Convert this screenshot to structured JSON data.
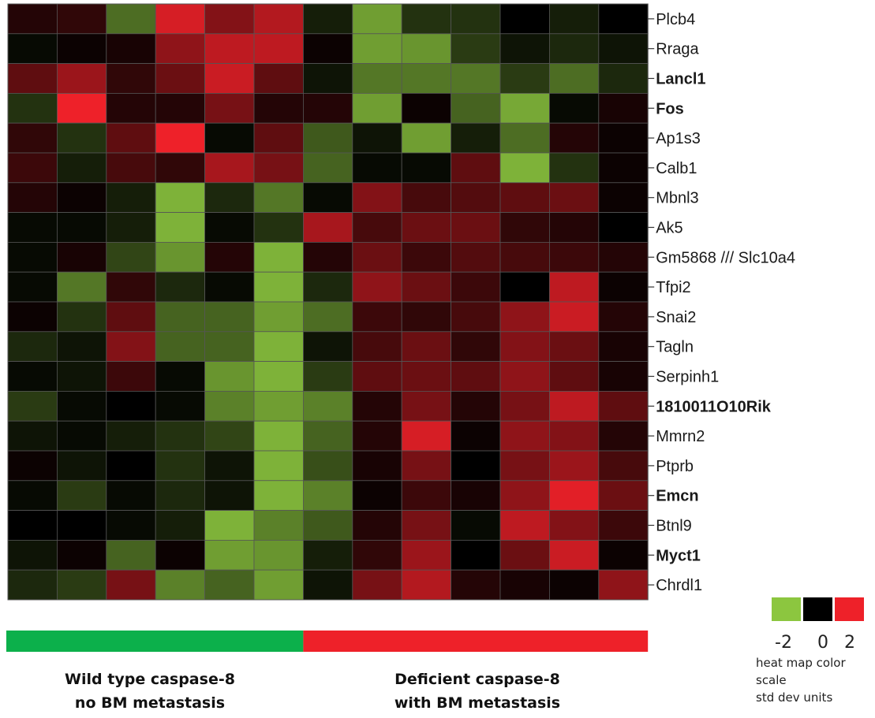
{
  "chart_data": {
    "type": "heatmap",
    "title": "",
    "columns_per_group": [
      6,
      7
    ],
    "rows": [
      {
        "gene": "Plcb4",
        "bold": false,
        "values": [
          0.3,
          0.4,
          -1.1,
          1.8,
          1.1,
          1.5,
          -0.3,
          -1.6,
          -0.5,
          -0.5,
          0.0,
          -0.3,
          0.0
        ]
      },
      {
        "gene": "Rraga",
        "bold": false,
        "values": [
          -0.1,
          0.1,
          0.2,
          1.2,
          1.6,
          1.6,
          0.1,
          -1.6,
          -1.5,
          -0.6,
          -0.2,
          -0.4,
          -0.2
        ]
      },
      {
        "gene": "Lancl1",
        "bold": true,
        "values": [
          0.8,
          1.3,
          0.4,
          0.9,
          1.7,
          0.8,
          -0.2,
          -1.2,
          -1.2,
          -1.2,
          -0.6,
          -1.1,
          -0.4
        ]
      },
      {
        "gene": "Fos",
        "bold": true,
        "values": [
          -0.5,
          2.0,
          0.3,
          0.3,
          1.0,
          0.3,
          0.3,
          -1.6,
          0.1,
          -1.0,
          -1.7,
          -0.1,
          0.2
        ]
      },
      {
        "gene": "Ap1s3",
        "bold": false,
        "values": [
          0.4,
          -0.5,
          0.8,
          2.0,
          -0.1,
          0.8,
          -0.9,
          -0.2,
          -1.6,
          -0.3,
          -1.1,
          0.3,
          0.1
        ]
      },
      {
        "gene": "Calb1",
        "bold": false,
        "values": [
          0.5,
          -0.3,
          0.6,
          0.4,
          1.4,
          1.0,
          -1.0,
          -0.1,
          -0.1,
          0.8,
          -1.8,
          -0.5,
          0.1
        ]
      },
      {
        "gene": "Mbnl3",
        "bold": false,
        "values": [
          0.3,
          0.1,
          -0.3,
          -1.8,
          -0.4,
          -1.2,
          -0.1,
          1.1,
          0.6,
          0.7,
          0.8,
          0.9,
          0.1
        ]
      },
      {
        "gene": "Ak5",
        "bold": false,
        "values": [
          -0.1,
          -0.1,
          -0.3,
          -1.8,
          -0.1,
          -0.5,
          1.4,
          0.6,
          0.9,
          0.9,
          0.4,
          0.3,
          0.0
        ]
      },
      {
        "gene": "Gm5868 /// Slc10a4",
        "bold": false,
        "values": [
          -0.1,
          0.2,
          -0.7,
          -1.5,
          0.3,
          -1.8,
          0.3,
          0.9,
          0.5,
          0.7,
          0.6,
          0.5,
          0.3
        ]
      },
      {
        "gene": "Tfpi2",
        "bold": false,
        "values": [
          -0.1,
          -1.2,
          0.4,
          -0.4,
          -0.1,
          -1.8,
          -0.4,
          1.2,
          0.9,
          0.5,
          0.0,
          1.6,
          0.1
        ]
      },
      {
        "gene": "Snai2",
        "bold": false,
        "values": [
          0.1,
          -0.5,
          0.8,
          -1.0,
          -1.0,
          -1.6,
          -1.1,
          0.5,
          0.4,
          0.6,
          1.2,
          1.7,
          0.3
        ]
      },
      {
        "gene": "Tagln",
        "bold": false,
        "values": [
          -0.4,
          -0.2,
          1.1,
          -1.0,
          -1.0,
          -1.8,
          -0.2,
          0.6,
          0.9,
          0.4,
          1.1,
          0.9,
          0.2
        ]
      },
      {
        "gene": "Serpinh1",
        "bold": false,
        "values": [
          -0.1,
          -0.2,
          0.5,
          -0.1,
          -1.5,
          -1.8,
          -0.6,
          0.8,
          0.9,
          0.8,
          1.2,
          0.8,
          0.2
        ]
      },
      {
        "gene": "1810011O10Rik",
        "bold": true,
        "values": [
          -0.6,
          -0.1,
          0.0,
          -0.1,
          -1.3,
          -1.6,
          -1.3,
          0.3,
          1.0,
          0.3,
          1.0,
          1.6,
          0.8
        ]
      },
      {
        "gene": "Mmrn2",
        "bold": false,
        "values": [
          -0.2,
          -0.1,
          -0.3,
          -0.5,
          -0.7,
          -1.8,
          -1.0,
          0.3,
          1.8,
          0.1,
          1.2,
          1.1,
          0.3
        ]
      },
      {
        "gene": "Ptprb",
        "bold": false,
        "values": [
          0.1,
          -0.2,
          0.0,
          -0.5,
          -0.2,
          -1.8,
          -0.8,
          0.2,
          1.0,
          0.0,
          1.0,
          1.3,
          0.6
        ]
      },
      {
        "gene": "Emcn",
        "bold": true,
        "values": [
          -0.1,
          -0.6,
          -0.1,
          -0.4,
          -0.2,
          -1.8,
          -1.3,
          0.1,
          0.5,
          0.2,
          1.2,
          1.9,
          0.9
        ]
      },
      {
        "gene": "Btnl9",
        "bold": false,
        "values": [
          0.0,
          0.0,
          -0.1,
          -0.3,
          -1.8,
          -1.3,
          -0.9,
          0.3,
          1.0,
          -0.1,
          1.6,
          1.1,
          0.5
        ]
      },
      {
        "gene": "Myct1",
        "bold": true,
        "values": [
          -0.2,
          0.1,
          -1.0,
          0.1,
          -1.6,
          -1.5,
          -0.3,
          0.4,
          1.3,
          0.0,
          0.9,
          1.7,
          0.1
        ]
      },
      {
        "gene": "Chrdl1",
        "bold": false,
        "values": [
          -0.4,
          -0.6,
          1.0,
          -1.3,
          -1.0,
          -1.6,
          -0.2,
          1.0,
          1.5,
          0.3,
          0.2,
          0.1,
          1.2
        ]
      }
    ],
    "groups": [
      {
        "line1": "Wild type caspase-8",
        "line2": "no BM metastasis",
        "color": "#0cb04b"
      },
      {
        "line1": "Deficient caspase-8",
        "line2": "with BM metastasis",
        "color": "#ee2129"
      }
    ],
    "color_scale": {
      "min": -2,
      "mid": 0,
      "max": 2,
      "low_color": "#8cc63f",
      "mid_color": "#000000",
      "high_color": "#ee2129",
      "tick_labels": [
        "-2",
        "0",
        "2"
      ],
      "caption": [
        "heat map color",
        "scale",
        "std dev units"
      ]
    }
  }
}
